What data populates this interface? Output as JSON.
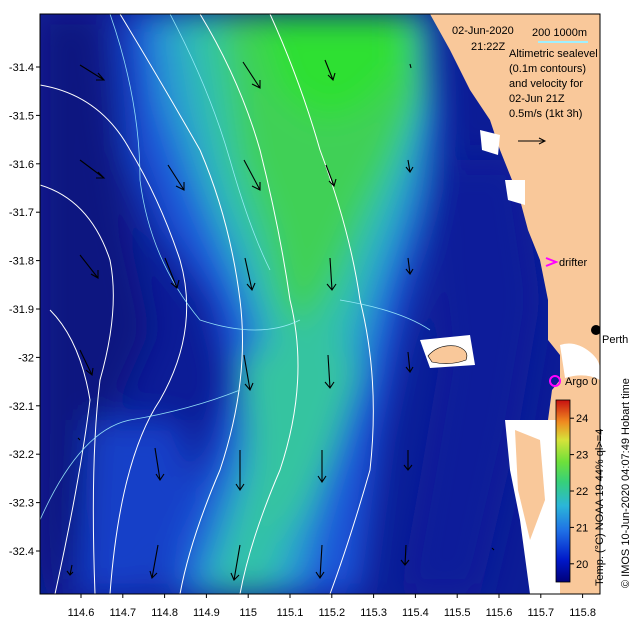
{
  "header": {
    "date": "02-Jun-2020",
    "time": "21:22Z",
    "scale_label": "200  1000m"
  },
  "legend_text": {
    "line1": "Altimetric sealevel",
    "line2": "(0.1m contours)",
    "line3": "and velocity for",
    "line4": "02-Jun 21Z",
    "line5": "0.5m/s (1kt 3h)"
  },
  "labels": {
    "drifter": "drifter",
    "argo": "Argo 0",
    "perth": "Perth",
    "hobart": "Hobart time",
    "credit": "© IMOS 10-Jun-2020 04:07:49 Hobart time",
    "colorbar_title": "Temp. (°C) NOAA 19 44% ql>=4"
  },
  "axes": {
    "y_ticks": [
      "-31.4",
      "-31.5",
      "-31.6",
      "-31.7",
      "-31.8",
      "-31.9",
      "-32",
      "-32.1",
      "-32.2",
      "-32.3",
      "-32.4"
    ],
    "x_ticks": [
      "114.6",
      "114.7",
      "114.8",
      "114.9",
      "115",
      "115.1",
      "115.2",
      "115.3",
      "115.4",
      "115.5",
      "115.6",
      "115.7",
      "115.8"
    ]
  },
  "colorbar": {
    "min": 19.5,
    "max": 24.5,
    "ticks": [
      "20",
      "21",
      "22",
      "23",
      "24"
    ]
  },
  "colors": {
    "land": "#f9c89a",
    "deep_blue": "#0a1a8c",
    "mid_blue": "#1e5ad6",
    "teal": "#35b6c4",
    "green": "#3cd04a",
    "contour_white": "#ffffff",
    "contour_cyan": "#9ff0ff",
    "drifter_magenta": "#ff00ff"
  }
}
